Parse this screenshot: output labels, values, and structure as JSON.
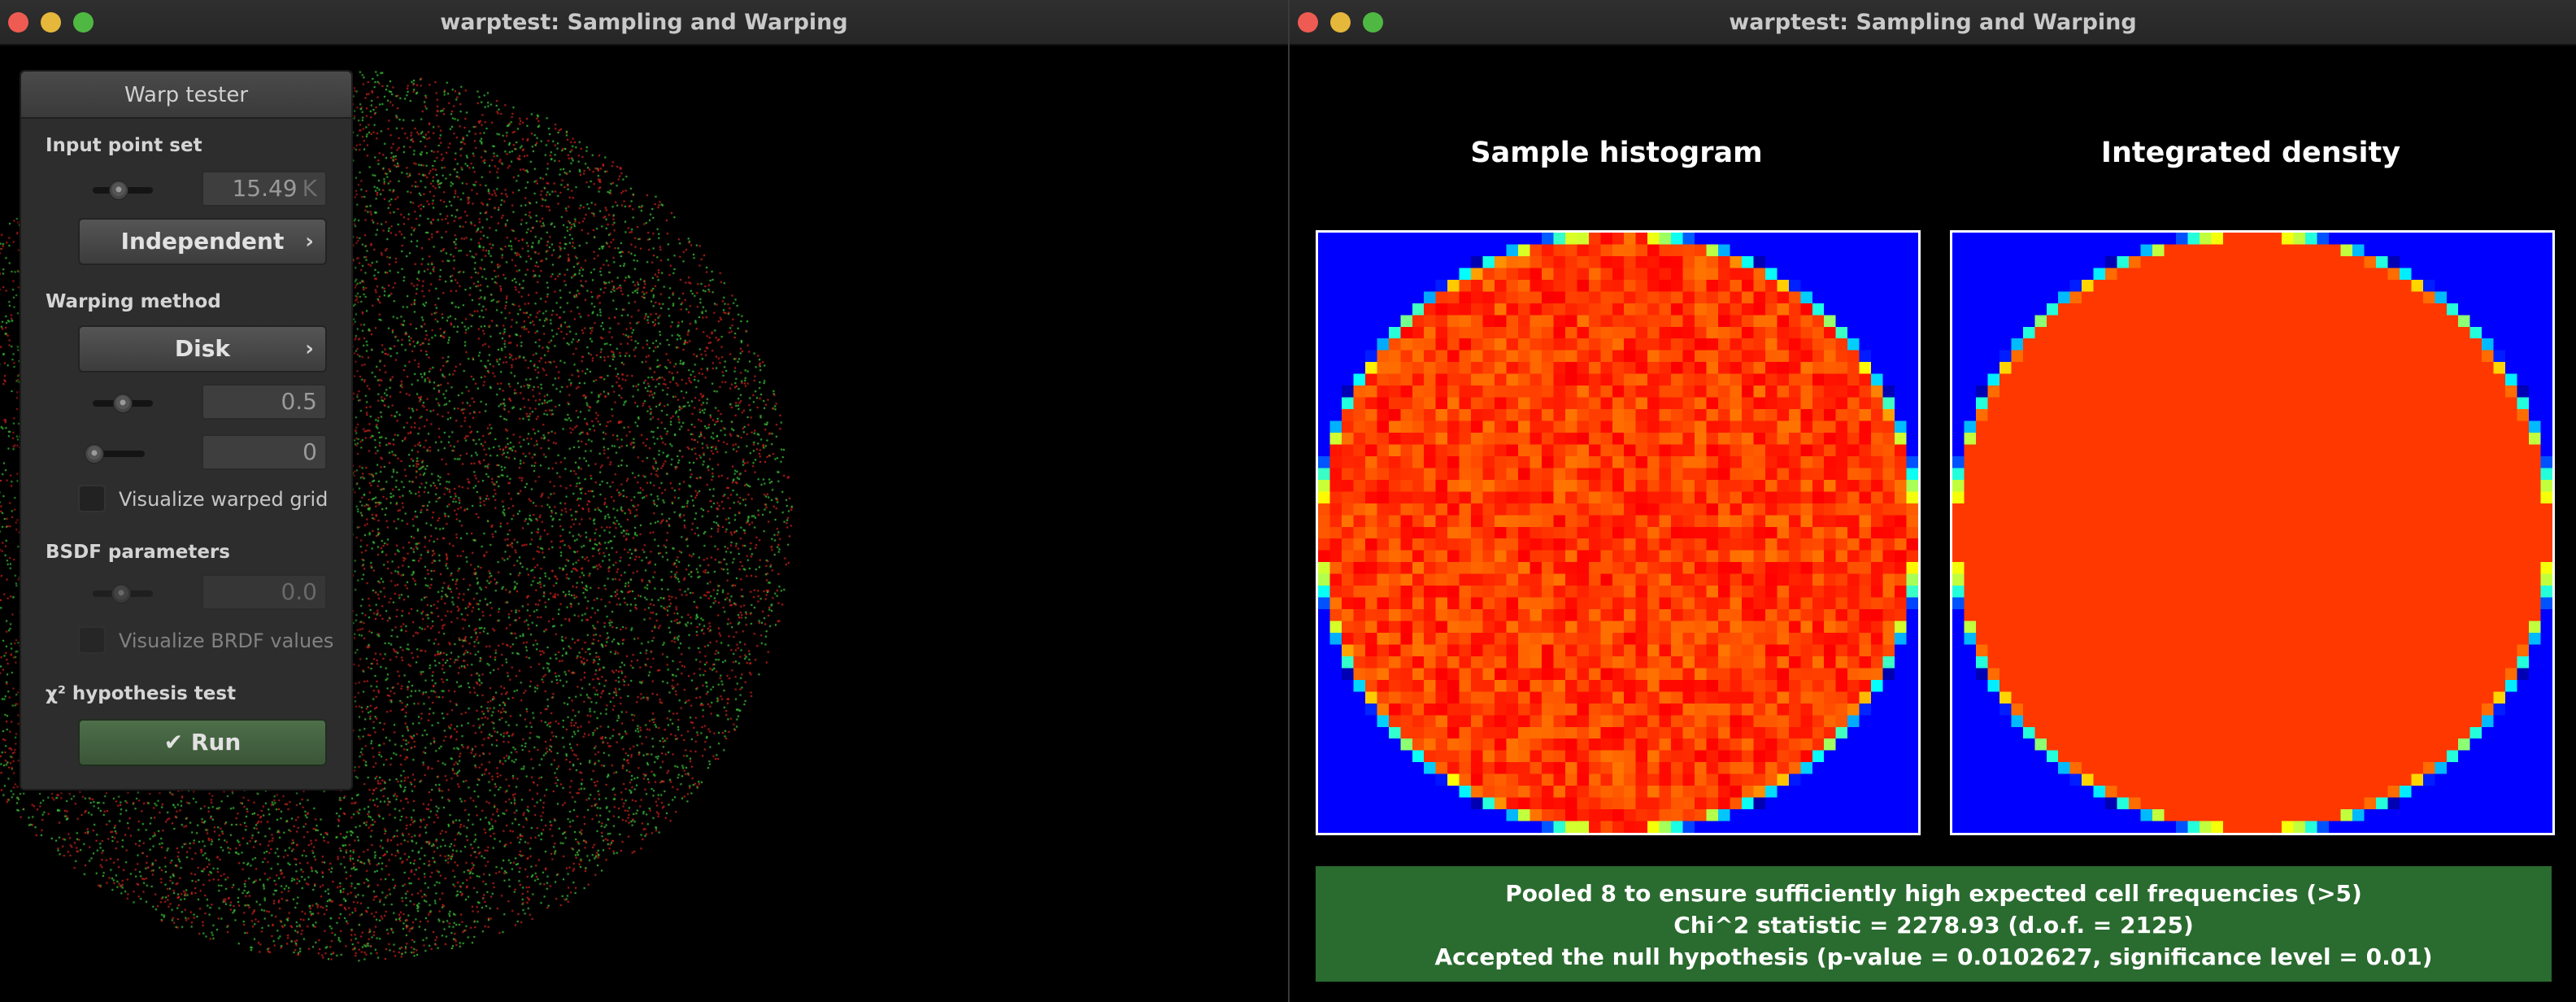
{
  "windows": {
    "left": {
      "title": "warptest: Sampling and Warping"
    },
    "right": {
      "title": "warptest: Sampling and Warping"
    }
  },
  "panel": {
    "title": "Warp tester",
    "input_point_set": {
      "label": "Input point set",
      "slider_level": 0.4,
      "count_value": "15.49",
      "count_unit": "K",
      "mode_button": "Independent"
    },
    "warping_method": {
      "label": "Warping method",
      "method_button": "Disk",
      "param1_slider_level": 0.5,
      "param1_value": "0.5",
      "param2_slider_level": 0.0,
      "param2_value": "0",
      "visualize_grid_label": "Visualize warped grid",
      "visualize_grid_checked": false
    },
    "bsdf": {
      "label": "BSDF parameters",
      "slider_level": 0.45,
      "value": "0.0",
      "visualize_brdf_label": "Visualize BRDF values",
      "visualize_brdf_checked": false
    },
    "hypothesis": {
      "label": "χ² hypothesis test",
      "run_button": "✔ Run"
    }
  },
  "plots": {
    "histogram_title": "Sample histogram",
    "density_title": "Integrated density",
    "grid_cells": 51
  },
  "result": {
    "line1": "Pooled 8 to ensure sufficiently high expected cell frequencies (>5)",
    "line2": "Chi^2 statistic = 2278.93 (d.o.f. = 2125)",
    "line3": "Accepted the null hypothesis (p-value = 0.0102627, significance level = 0.01)"
  },
  "colors": {
    "point_red": "#d2241e",
    "point_green": "#3ec83a",
    "heat_background": "#0000ff",
    "heat_uniform": "#ff6600",
    "result_bg": "#2a6b2f",
    "traffic_close": "#ee5b52",
    "traffic_minimize": "#e5b73b",
    "traffic_maximize": "#4fb842"
  }
}
